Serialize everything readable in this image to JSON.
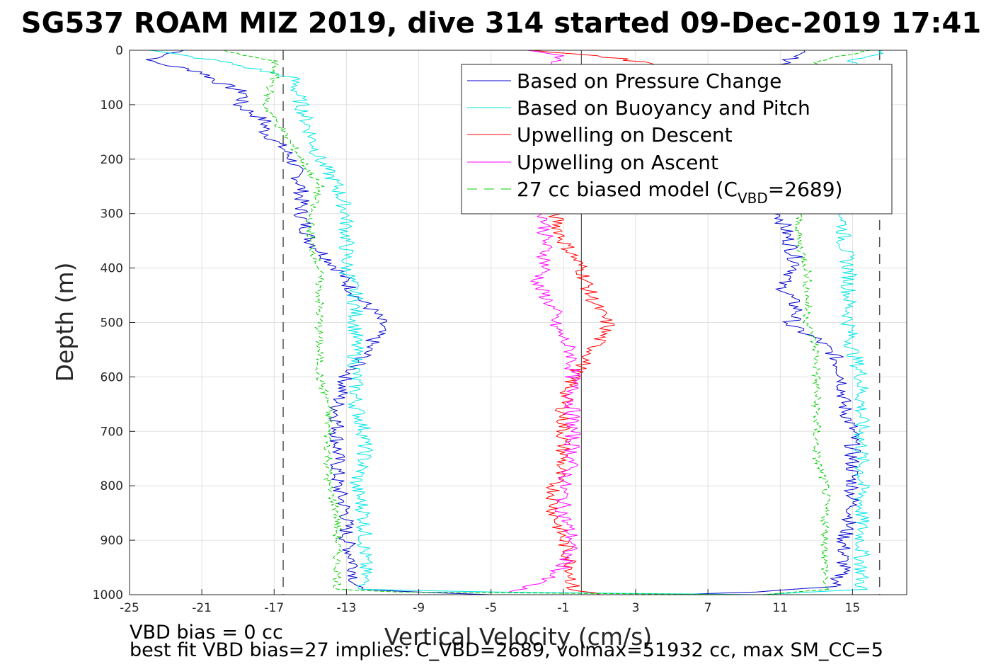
{
  "chart_data": {
    "type": "line",
    "title": "SG537 ROAM MIZ 2019, dive 314 started 09-Dec-2019 17:41",
    "xlabel": "Vertical Velocity (cm/s)",
    "ylabel": "Depth (m)",
    "xlim": [
      -25,
      18
    ],
    "ylim": [
      0,
      1000
    ],
    "y_reversed": true,
    "grid": true,
    "x_ticks": [
      -25,
      -21,
      -17,
      -13,
      -9,
      -5,
      -1,
      3,
      7,
      11,
      15
    ],
    "y_ticks": [
      0,
      100,
      200,
      300,
      400,
      500,
      600,
      700,
      800,
      900,
      1000
    ],
    "reference_lines": {
      "dashed_gray_x": [
        -16.5,
        16.5
      ],
      "solid_gray_x": [
        0
      ]
    },
    "legend_position": "top-right",
    "legend": {
      "pressure_label": "Based on Pressure Change",
      "buoyancy_label": "Based on Buoyancy and Pitch",
      "descent_label": "Upwelling on Descent",
      "ascent_label": "Upwelling on Ascent",
      "model_prefix": "27 cc biased model (C",
      "model_subscript": "VBD",
      "model_suffix": "=2689)"
    },
    "series": [
      {
        "name": "Based on Pressure Change",
        "color": "#0000cc",
        "style": "solid",
        "segments": [
          {
            "depth": [
              0,
              20,
              40,
              60,
              80,
              100,
              130,
              150,
              180,
              200,
              250,
              300,
              350,
              400,
              450,
              480,
              505,
              530,
              560,
              600,
              650,
              700,
              750,
              800,
              850,
              900,
              950,
              990,
              1000
            ],
            "value": [
              -22,
              -24,
              -21,
              -20,
              -18.5,
              -19,
              -17.5,
              -17.5,
              -16.5,
              -16,
              -15.5,
              -15.5,
              -15,
              -13.5,
              -12.5,
              -11.5,
              -11,
              -11.5,
              -12,
              -13,
              -13.5,
              -13.5,
              -13.5,
              -13.5,
              -13,
              -13,
              -12.5,
              -12.5,
              -5
            ]
          },
          {
            "depth": [
              0,
              20,
              50,
              100,
              200,
              300,
              350,
              400,
              430,
              450,
              480,
              505,
              530,
              560,
              600,
              650,
              700,
              750,
              800,
              850,
              900,
              950,
              985,
              995,
              1000
            ],
            "value": [
              12,
              11.5,
              11,
              11,
              11,
              11,
              11.5,
              12,
              11,
              11.5,
              12,
              11.5,
              13,
              14,
              14.5,
              14.5,
              15,
              15,
              15,
              15,
              14.5,
              14.5,
              14,
              10,
              5
            ]
          }
        ]
      },
      {
        "name": "Based on Buoyancy and Pitch",
        "color": "#00e5e5",
        "style": "solid",
        "segments": [
          {
            "depth": [
              0,
              20,
              50,
              100,
              150,
              200,
              250,
              300,
              350,
              400,
              450,
              500,
              550,
              600,
              650,
              700,
              750,
              800,
              850,
              900,
              950,
              990,
              995,
              1000
            ],
            "value": [
              -24,
              -20,
              -16,
              -15.5,
              -15,
              -14.5,
              -13.5,
              -13,
              -13,
              -13,
              -12.5,
              -12.5,
              -12.5,
              -12.5,
              -12.5,
              -12,
              -12,
              -12.5,
              -12,
              -12,
              -12,
              -12,
              -5,
              10
            ]
          },
          {
            "depth": [
              0,
              20,
              50,
              100,
              200,
              300,
              350,
              400,
              450,
              500,
              550,
              600,
              650,
              700,
              750,
              800,
              850,
              900,
              950,
              990,
              1000
            ],
            "value": [
              17,
              15,
              14.5,
              14.5,
              14.5,
              14.5,
              14.5,
              14.8,
              14.8,
              14.8,
              15,
              15.5,
              15.5,
              15.5,
              15.5,
              15.5,
              15.5,
              15.5,
              15.5,
              15.5,
              10
            ]
          }
        ]
      },
      {
        "name": "Upwelling on Descent",
        "color": "#ff0000",
        "style": "solid",
        "segments": [
          {
            "depth": [
              0,
              10,
              30,
              300,
              350,
              400,
              450,
              480,
              505,
              530,
              560,
              600,
              650,
              700,
              750,
              800,
              850,
              900,
              950,
              990,
              1000
            ],
            "value": [
              -3,
              1,
              5,
              -1.5,
              -1,
              0,
              0.5,
              1,
              1.5,
              1,
              0.5,
              -0.5,
              -1,
              -1,
              -1,
              -1.5,
              -1.5,
              -1,
              -0.5,
              -0.5,
              1
            ]
          }
        ]
      },
      {
        "name": "Upwelling on Ascent",
        "color": "#ff00ff",
        "style": "solid",
        "segments": [
          {
            "depth": [
              0,
              10,
              30,
              300,
              350,
              400,
              430,
              450,
              480,
              505,
              530,
              560,
              600,
              650,
              700,
              750,
              800,
              850,
              900,
              950,
              980,
              995
            ],
            "value": [
              -3,
              -1,
              -2,
              -2,
              -2,
              -2,
              -2.5,
              -2,
              -1.5,
              -1.5,
              -1,
              -0.5,
              -0.5,
              -0.5,
              -0.5,
              -0.5,
              -1,
              -1,
              -0.5,
              -1,
              -2.5,
              -4
            ]
          }
        ]
      },
      {
        "name": "27 cc biased model (CVBD=2689)",
        "color": "#00cc00",
        "style": "dashed",
        "segments": [
          {
            "depth": [
              0,
              20,
              50,
              100,
              150,
              200,
              250,
              300,
              350,
              400,
              450,
              500,
              550,
              600,
              650,
              700,
              750,
              800,
              850,
              900,
              950,
              990,
              995,
              1000
            ],
            "value": [
              -20,
              -17,
              -17,
              -17.5,
              -16.5,
              -15.5,
              -14.5,
              -15,
              -15,
              -14.5,
              -14.5,
              -14.5,
              -14.5,
              -14.5,
              -14,
              -14,
              -14,
              -14,
              -13.5,
              -13.5,
              -13.5,
              -13.5,
              -10,
              9
            ]
          },
          {
            "depth": [
              0,
              20,
              50,
              100,
              200,
              300,
              350,
              400,
              450,
              500,
              550,
              600,
              650,
              700,
              750,
              800,
              850,
              900,
              950,
              990,
              1000
            ],
            "value": [
              16,
              13,
              12.5,
              12.5,
              12.5,
              12,
              12,
              12.5,
              12.5,
              12.5,
              13,
              13,
              13,
              13,
              13,
              13.5,
              13.5,
              13.5,
              13.5,
              13.5,
              10
            ]
          }
        ]
      }
    ]
  },
  "notes": {
    "bias_text": "VBD bias = 0 cc",
    "fit_text": "best fit VBD bias=27 implies: C_VBD=2689, volmax=51932 cc, max SM_CC=5"
  }
}
